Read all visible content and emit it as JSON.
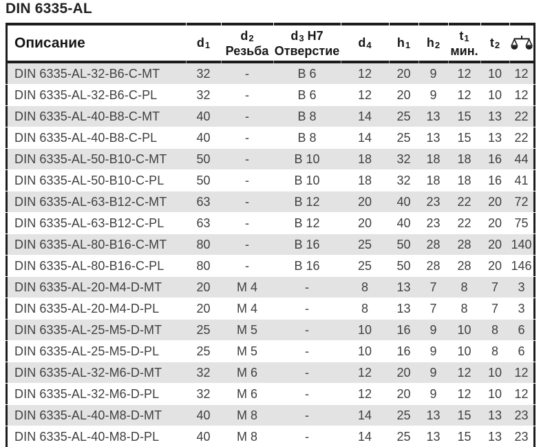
{
  "page": {
    "title": "DIN 6335-AL"
  },
  "colors": {
    "stripe": "#e3e3e3",
    "border": "#1c1c1c",
    "header_text": "#161616",
    "body_text": "#3f3f3f",
    "tick": "#9a9a9a"
  },
  "table": {
    "columns": [
      {
        "id": "desc",
        "label": "Описание"
      },
      {
        "id": "d1",
        "base": "d",
        "sub": "1"
      },
      {
        "id": "d2",
        "base": "d",
        "sub": "2",
        "line2": "Резьба"
      },
      {
        "id": "d3",
        "base": "d",
        "sub": "3",
        "suffix": " H7",
        "line2": "Отверстие"
      },
      {
        "id": "d4",
        "base": "d",
        "sub": "4"
      },
      {
        "id": "h1",
        "base": "h",
        "sub": "1"
      },
      {
        "id": "h2",
        "base": "h",
        "sub": "2"
      },
      {
        "id": "t1",
        "base": "t",
        "sub": "1",
        "line2": "мин."
      },
      {
        "id": "t2",
        "base": "t",
        "sub": "2"
      },
      {
        "id": "weight",
        "icon": "scales-icon"
      }
    ],
    "rows": [
      {
        "desc": "DIN 6335-AL-32-B6-C-MT",
        "d1": "32",
        "d2": "-",
        "d3": "B 6",
        "d4": "12",
        "h1": "20",
        "h2": "9",
        "t1": "12",
        "t2": "10",
        "weight": "12"
      },
      {
        "desc": "DIN 6335-AL-32-B6-C-PL",
        "d1": "32",
        "d2": "-",
        "d3": "B 6",
        "d4": "12",
        "h1": "20",
        "h2": "9",
        "t1": "12",
        "t2": "10",
        "weight": "12"
      },
      {
        "desc": "DIN 6335-AL-40-B8-C-MT",
        "d1": "40",
        "d2": "-",
        "d3": "B 8",
        "d4": "14",
        "h1": "25",
        "h2": "13",
        "t1": "15",
        "t2": "13",
        "weight": "22"
      },
      {
        "desc": "DIN 6335-AL-40-B8-C-PL",
        "d1": "40",
        "d2": "-",
        "d3": "B 8",
        "d4": "14",
        "h1": "25",
        "h2": "13",
        "t1": "15",
        "t2": "13",
        "weight": "22"
      },
      {
        "desc": "DIN 6335-AL-50-B10-C-MT",
        "d1": "50",
        "d2": "-",
        "d3": "B 10",
        "d4": "18",
        "h1": "32",
        "h2": "18",
        "t1": "18",
        "t2": "16",
        "weight": "44"
      },
      {
        "desc": "DIN 6335-AL-50-B10-C-PL",
        "d1": "50",
        "d2": "-",
        "d3": "B 10",
        "d4": "18",
        "h1": "32",
        "h2": "18",
        "t1": "18",
        "t2": "16",
        "weight": "41"
      },
      {
        "desc": "DIN 6335-AL-63-B12-C-MT",
        "d1": "63",
        "d2": "-",
        "d3": "B 12",
        "d4": "20",
        "h1": "40",
        "h2": "23",
        "t1": "22",
        "t2": "20",
        "weight": "72"
      },
      {
        "desc": "DIN 6335-AL-63-B12-C-PL",
        "d1": "63",
        "d2": "-",
        "d3": "B 12",
        "d4": "20",
        "h1": "40",
        "h2": "23",
        "t1": "22",
        "t2": "20",
        "weight": "75"
      },
      {
        "desc": "DIN 6335-AL-80-B16-C-MT",
        "d1": "80",
        "d2": "-",
        "d3": "B 16",
        "d4": "25",
        "h1": "50",
        "h2": "28",
        "t1": "28",
        "t2": "20",
        "weight": "140"
      },
      {
        "desc": "DIN 6335-AL-80-B16-C-PL",
        "d1": "80",
        "d2": "-",
        "d3": "B 16",
        "d4": "25",
        "h1": "50",
        "h2": "28",
        "t1": "28",
        "t2": "20",
        "weight": "146"
      },
      {
        "desc": "DIN 6335-AL-20-M4-D-MT",
        "d1": "20",
        "d2": "M 4",
        "d3": "-",
        "d4": "8",
        "h1": "13",
        "h2": "7",
        "t1": "8",
        "t2": "7",
        "weight": "3"
      },
      {
        "desc": "DIN 6335-AL-20-M4-D-PL",
        "d1": "20",
        "d2": "M 4",
        "d3": "-",
        "d4": "8",
        "h1": "13",
        "h2": "7",
        "t1": "8",
        "t2": "7",
        "weight": "3"
      },
      {
        "desc": "DIN 6335-AL-25-M5-D-MT",
        "d1": "25",
        "d2": "M 5",
        "d3": "-",
        "d4": "10",
        "h1": "16",
        "h2": "9",
        "t1": "10",
        "t2": "8",
        "weight": "6"
      },
      {
        "desc": "DIN 6335-AL-25-M5-D-PL",
        "d1": "25",
        "d2": "M 5",
        "d3": "-",
        "d4": "10",
        "h1": "16",
        "h2": "9",
        "t1": "10",
        "t2": "8",
        "weight": "6"
      },
      {
        "desc": "DIN 6335-AL-32-M6-D-MT",
        "d1": "32",
        "d2": "M 6",
        "d3": "-",
        "d4": "12",
        "h1": "20",
        "h2": "9",
        "t1": "12",
        "t2": "10",
        "weight": "12"
      },
      {
        "desc": "DIN 6335-AL-32-M6-D-PL",
        "d1": "32",
        "d2": "M 6",
        "d3": "-",
        "d4": "12",
        "h1": "20",
        "h2": "9",
        "t1": "12",
        "t2": "10",
        "weight": "12"
      },
      {
        "desc": "DIN 6335-AL-40-M8-D-MT",
        "d1": "40",
        "d2": "M 8",
        "d3": "-",
        "d4": "14",
        "h1": "25",
        "h2": "13",
        "t1": "15",
        "t2": "13",
        "weight": "23"
      },
      {
        "desc": "DIN 6335-AL-40-M8-D-PL",
        "d1": "40",
        "d2": "M 8",
        "d3": "-",
        "d4": "14",
        "h1": "25",
        "h2": "13",
        "t1": "15",
        "t2": "13",
        "weight": "23"
      }
    ]
  }
}
